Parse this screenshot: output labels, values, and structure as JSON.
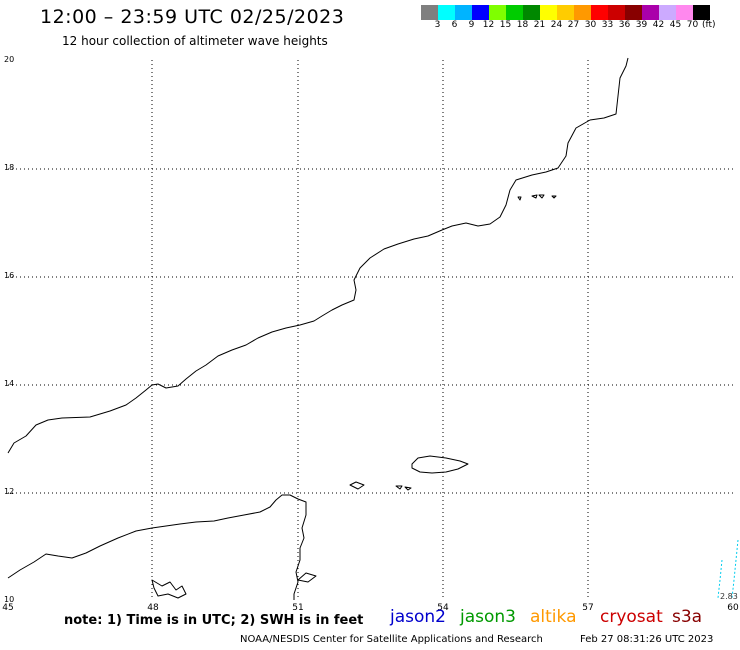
{
  "header": {
    "title": "12:00 – 23:59 UTC 02/25/2023",
    "subtitle": "12 hour collection of altimeter wave heights"
  },
  "legend": {
    "unit": "(ft)",
    "colors": [
      "#7f7f7f",
      "#00ffff",
      "#00b4ff",
      "#0000ff",
      "#7fff00",
      "#00cc00",
      "#008800",
      "#ffff00",
      "#ffcc00",
      "#ff9900",
      "#ff0000",
      "#cc0000",
      "#880000",
      "#aa00aa",
      "#ccaaff",
      "#ff88ee",
      "#000000"
    ],
    "labels": [
      "3",
      "6",
      "9",
      "12",
      "15",
      "18",
      "21",
      "24",
      "27",
      "30",
      "33",
      "36",
      "39",
      "42",
      "45",
      "70"
    ]
  },
  "map": {
    "lon_range": [
      45,
      60
    ],
    "lat_range": [
      10,
      20
    ],
    "x_ticks": [
      "45",
      "48",
      "51",
      "54",
      "57",
      "60"
    ],
    "y_ticks": [
      "20",
      "18",
      "16",
      "14",
      "12",
      "10"
    ],
    "corner_label": "2.83"
  },
  "footer": {
    "note": "note:  1) Time is in UTC;  2) SWH is in feet",
    "satellites": [
      {
        "name": "jason2",
        "color": "#0000cc"
      },
      {
        "name": "jason3",
        "color": "#009900"
      },
      {
        "name": "altika",
        "color": "#ff9900"
      },
      {
        "name": "cryosat",
        "color": "#cc0000"
      },
      {
        "name": "s3a",
        "color": "#880000"
      }
    ],
    "credit": "NOAA/NESDIS Center for Satellite Applications and Research",
    "timestamp": "Feb 27 08:31:26 UTC 2023"
  }
}
